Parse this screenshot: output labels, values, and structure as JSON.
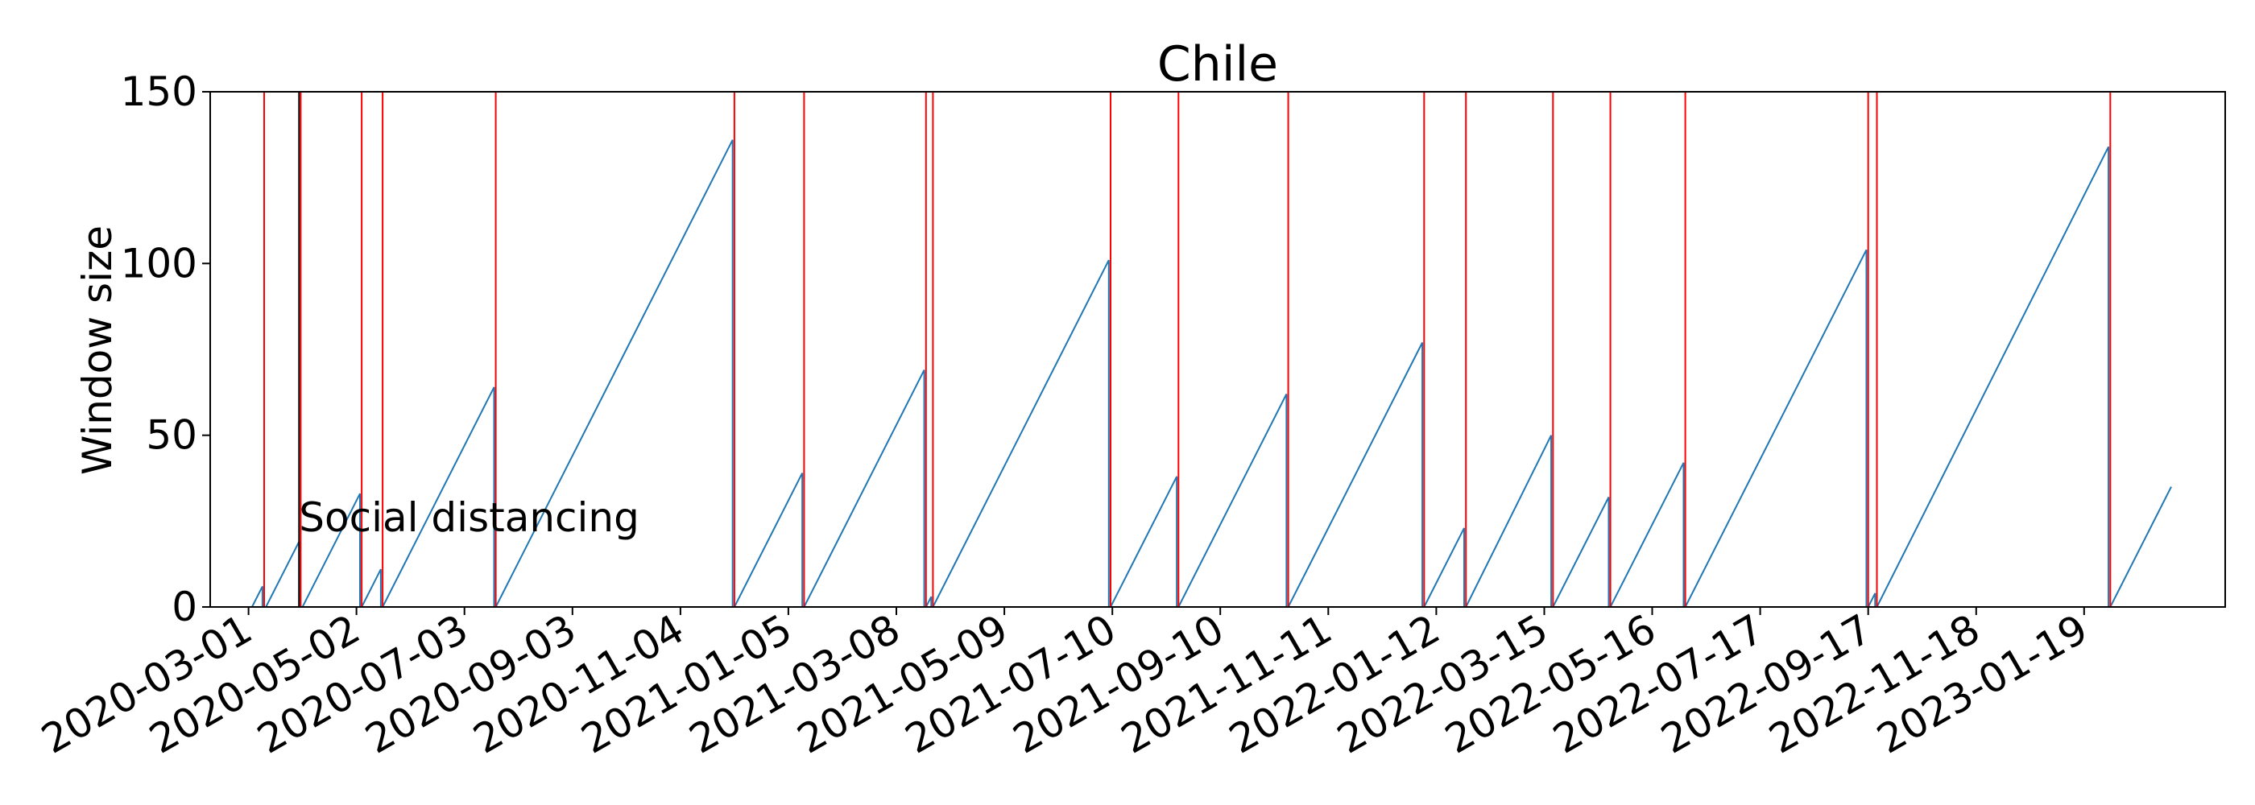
{
  "chart_data": {
    "type": "line",
    "title": "Chile",
    "xlabel": "",
    "ylabel": "Window size",
    "ylim": [
      0,
      150
    ],
    "xlim": [
      "2020-02-08",
      "2023-04-10"
    ],
    "yticks": [
      0,
      50,
      100,
      150
    ],
    "xticks": [
      "2020-03-01",
      "2020-05-02",
      "2020-07-03",
      "2020-09-03",
      "2020-11-04",
      "2021-01-05",
      "2021-03-08",
      "2021-05-09",
      "2021-07-10",
      "2021-09-10",
      "2021-11-11",
      "2022-01-12",
      "2022-03-15",
      "2022-05-16",
      "2022-07-17",
      "2022-09-17",
      "2022-11-18",
      "2023-01-19"
    ],
    "grid": false,
    "series": [
      {
        "color": "#1f77b4",
        "points": [
          [
            "2020-03-03",
            0
          ],
          [
            "2020-03-09",
            6
          ],
          [
            "2020-03-09",
            0
          ],
          [
            "2020-03-11",
            0
          ],
          [
            "2020-03-30",
            19
          ],
          [
            "2020-03-30",
            0
          ],
          [
            "2020-04-01",
            0
          ],
          [
            "2020-05-04",
            33
          ],
          [
            "2020-05-04",
            0
          ],
          [
            "2020-05-05",
            0
          ],
          [
            "2020-05-16",
            11
          ],
          [
            "2020-05-16",
            0
          ],
          [
            "2020-05-17",
            0
          ],
          [
            "2020-07-20",
            64
          ],
          [
            "2020-07-20",
            0
          ],
          [
            "2020-07-21",
            0
          ],
          [
            "2020-12-04",
            136
          ],
          [
            "2020-12-04",
            0
          ],
          [
            "2020-12-05",
            0
          ],
          [
            "2021-01-13",
            39
          ],
          [
            "2021-01-13",
            0
          ],
          [
            "2021-01-14",
            0
          ],
          [
            "2021-03-24",
            69
          ],
          [
            "2021-03-24",
            0
          ],
          [
            "2021-03-25",
            0
          ],
          [
            "2021-03-28",
            3
          ],
          [
            "2021-03-28",
            0
          ],
          [
            "2021-03-29",
            0
          ],
          [
            "2021-07-08",
            101
          ],
          [
            "2021-07-08",
            0
          ],
          [
            "2021-07-09",
            0
          ],
          [
            "2021-08-16",
            38
          ],
          [
            "2021-08-16",
            0
          ],
          [
            "2021-08-17",
            0
          ],
          [
            "2021-10-18",
            62
          ],
          [
            "2021-10-18",
            0
          ],
          [
            "2021-10-19",
            0
          ],
          [
            "2022-01-04",
            77
          ],
          [
            "2022-01-04",
            0
          ],
          [
            "2022-01-05",
            0
          ],
          [
            "2022-01-28",
            23
          ],
          [
            "2022-01-28",
            0
          ],
          [
            "2022-01-29",
            0
          ],
          [
            "2022-03-19",
            50
          ],
          [
            "2022-03-19",
            0
          ],
          [
            "2022-03-20",
            0
          ],
          [
            "2022-04-21",
            32
          ],
          [
            "2022-04-21",
            0
          ],
          [
            "2022-04-22",
            0
          ],
          [
            "2022-06-03",
            42
          ],
          [
            "2022-06-03",
            0
          ],
          [
            "2022-06-04",
            0
          ],
          [
            "2022-09-16",
            104
          ],
          [
            "2022-09-16",
            0
          ],
          [
            "2022-09-17",
            0
          ],
          [
            "2022-09-21",
            4
          ],
          [
            "2022-09-21",
            0
          ],
          [
            "2022-09-22",
            0
          ],
          [
            "2023-02-02",
            134
          ],
          [
            "2023-02-02",
            0
          ],
          [
            "2023-02-03",
            0
          ],
          [
            "2023-03-10",
            35
          ]
        ]
      }
    ],
    "vlines_red": [
      "2020-03-10",
      "2020-03-31",
      "2020-05-05",
      "2020-05-17",
      "2020-07-21",
      "2020-12-05",
      "2021-01-14",
      "2021-03-25",
      "2021-03-29",
      "2021-07-09",
      "2021-08-17",
      "2021-10-19",
      "2022-01-05",
      "2022-01-29",
      "2022-03-20",
      "2022-04-22",
      "2022-06-04",
      "2022-09-17",
      "2022-09-22",
      "2023-02-03"
    ],
    "vlines_black": [
      "2020-03-30"
    ],
    "annotations": [
      {
        "text": "Social distancing",
        "x": "2020-03-30",
        "y": 22
      }
    ]
  }
}
